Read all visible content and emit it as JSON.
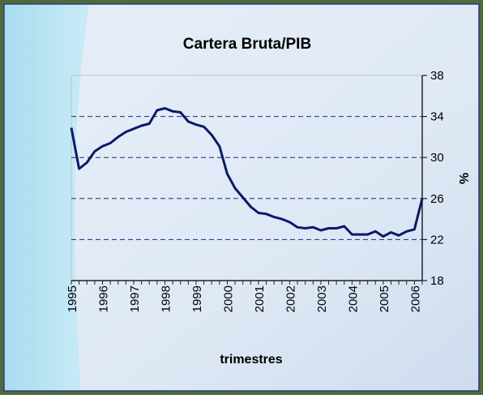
{
  "chart_data": {
    "type": "line",
    "title": "Cartera Bruta/PIB",
    "x_label": "trimestres",
    "y_label": "%",
    "categories": [
      "1995",
      null,
      null,
      null,
      "1996",
      null,
      null,
      null,
      "1997",
      null,
      null,
      null,
      "1998",
      null,
      null,
      null,
      "1999",
      null,
      null,
      null,
      "2000",
      null,
      null,
      null,
      "2001",
      null,
      null,
      null,
      "2002",
      null,
      null,
      null,
      "2003",
      null,
      null,
      null,
      "2004",
      null,
      null,
      null,
      "2005",
      null,
      null,
      null,
      "2006",
      null
    ],
    "series": [
      {
        "name": "Cartera Bruta/PIB",
        "color": "#0a1a6a",
        "values": [
          32.9,
          28.9,
          29.5,
          30.6,
          31.1,
          31.4,
          32.0,
          32.5,
          32.8,
          33.1,
          33.3,
          34.6,
          34.8,
          34.5,
          34.4,
          33.5,
          33.2,
          33.0,
          32.2,
          31.1,
          28.4,
          27.0,
          26.1,
          25.2,
          24.6,
          24.5,
          24.2,
          24.0,
          23.7,
          23.2,
          23.1,
          23.2,
          22.9,
          23.1,
          23.1,
          23.3,
          22.5,
          22.5,
          22.5,
          22.8,
          22.3,
          22.7,
          22.4,
          22.8,
          23.0,
          26.0
        ]
      }
    ],
    "ylim": [
      18,
      38
    ],
    "yticks": [
      18,
      22,
      26,
      30,
      34,
      38
    ],
    "y_axis_side": "right",
    "grid": true
  }
}
